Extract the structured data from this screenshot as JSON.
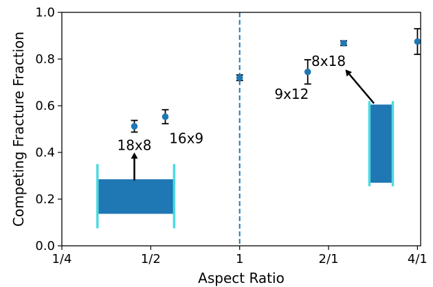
{
  "chart_data": {
    "type": "scatter",
    "xlabel": "Aspect Ratio",
    "ylabel": "Competing Fracture Fraction",
    "x_scale": "log2",
    "xlim": [
      0.25,
      4.1
    ],
    "ylim": [
      0.0,
      1.0
    ],
    "x_ticks": [
      {
        "value": 0.25,
        "label": "1/4"
      },
      {
        "value": 0.5,
        "label": "1/2"
      },
      {
        "value": 1,
        "label": "1"
      },
      {
        "value": 2,
        "label": "2/1"
      },
      {
        "value": 4,
        "label": "4/1"
      }
    ],
    "y_ticks": [
      {
        "value": 0.0,
        "label": "0.0"
      },
      {
        "value": 0.2,
        "label": "0.2"
      },
      {
        "value": 0.4,
        "label": "0.4"
      },
      {
        "value": 0.6,
        "label": "0.6"
      },
      {
        "value": 0.8,
        "label": "0.8"
      },
      {
        "value": 1.0,
        "label": "1.0"
      }
    ],
    "points": [
      {
        "x": 0.44,
        "y": 0.512,
        "err": 0.025
      },
      {
        "x": 0.56,
        "y": 0.553,
        "err": 0.03
      },
      {
        "x": 1.0,
        "y": 0.72,
        "err": 0.012
      },
      {
        "x": 1.7,
        "y": 0.745,
        "err": 0.052
      },
      {
        "x": 2.25,
        "y": 0.868,
        "err": 0.01
      },
      {
        "x": 4.0,
        "y": 0.875,
        "err": 0.055
      }
    ],
    "reference_line": {
      "x": 1,
      "style": "dashed"
    },
    "annotations": [
      {
        "text": "18x8",
        "x": 0.44,
        "y": 0.41
      },
      {
        "text": "16x9",
        "x": 0.66,
        "y": 0.44
      },
      {
        "text": "9x12",
        "x": 1.5,
        "y": 0.63
      },
      {
        "text": "8x18",
        "x": 2.0,
        "y": 0.77
      }
    ],
    "arrows": [
      {
        "from": [
          0.44,
          0.28
        ],
        "to": [
          0.44,
          0.4
        ]
      },
      {
        "from": [
          2.85,
          0.61
        ],
        "to": [
          2.28,
          0.755
        ]
      }
    ],
    "insets": [
      {
        "x0": 0.33,
        "x1": 0.6,
        "y0": 0.137,
        "y1": 0.285,
        "bar_y0": 0.075,
        "bar_y1": 0.35
      },
      {
        "x0": 2.75,
        "x1": 3.3,
        "y0": 0.27,
        "y1": 0.605,
        "bar_y0": 0.255,
        "bar_y1": 0.62
      }
    ],
    "colors": {
      "marker": "#1f77b4",
      "inset_fill": "#1f77b4",
      "inset_bar": "#4dd9e0",
      "error": "#000000",
      "reference": "#1f77b4"
    }
  }
}
